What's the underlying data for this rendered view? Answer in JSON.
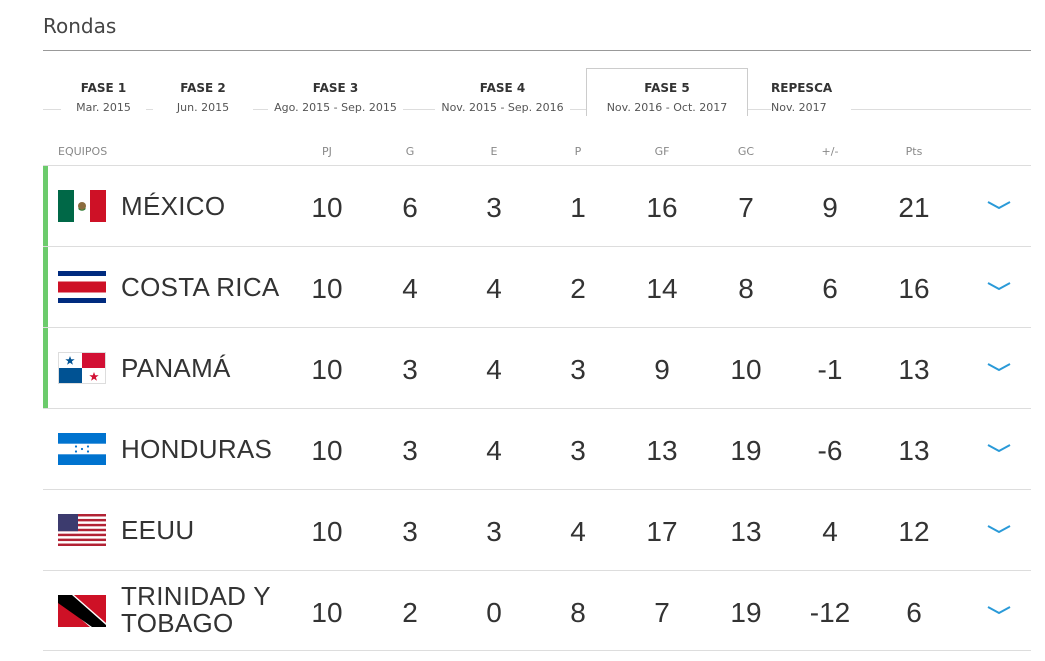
{
  "section": {
    "title": "Rondas"
  },
  "tabs": [
    {
      "name": "FASE 1",
      "date": "Mar. 2015"
    },
    {
      "name": "FASE 2",
      "date": "Jun. 2015"
    },
    {
      "name": "FASE 3",
      "date": "Ago. 2015 - Sep. 2015"
    },
    {
      "name": "FASE 4",
      "date": "Nov. 2015 - Sep. 2016"
    },
    {
      "name": "FASE 5",
      "date": "Nov. 2016 - Oct. 2017",
      "active": true
    },
    {
      "name": "REPESCA",
      "date": "Nov. 2017"
    }
  ],
  "table": {
    "headers": {
      "team": "EQUIPOS",
      "pj": "PJ",
      "g": "G",
      "e": "E",
      "p": "P",
      "gf": "GF",
      "gc": "GC",
      "diff": "+/-",
      "pts": "Pts"
    },
    "rows": [
      {
        "team": "MÉXICO",
        "flag": "mexico-flag",
        "qualified": true,
        "pj": "10",
        "g": "6",
        "e": "3",
        "p": "1",
        "gf": "16",
        "gc": "7",
        "diff": "9",
        "pts": "21"
      },
      {
        "team": "COSTA RICA",
        "flag": "costa-rica-flag",
        "qualified": true,
        "pj": "10",
        "g": "4",
        "e": "4",
        "p": "2",
        "gf": "14",
        "gc": "8",
        "diff": "6",
        "pts": "16"
      },
      {
        "team": "PANAMÁ",
        "flag": "panama-flag",
        "qualified": true,
        "pj": "10",
        "g": "3",
        "e": "4",
        "p": "3",
        "gf": "9",
        "gc": "10",
        "diff": "-1",
        "pts": "13"
      },
      {
        "team": "HONDURAS",
        "flag": "honduras-flag",
        "qualified": false,
        "pj": "10",
        "g": "3",
        "e": "4",
        "p": "3",
        "gf": "13",
        "gc": "19",
        "diff": "-6",
        "pts": "13"
      },
      {
        "team": "EEUU",
        "flag": "usa-flag",
        "qualified": false,
        "pj": "10",
        "g": "3",
        "e": "3",
        "p": "4",
        "gf": "17",
        "gc": "13",
        "diff": "4",
        "pts": "12"
      },
      {
        "team_line1": "TRINIDAD Y",
        "team_line2": "TOBAGO",
        "flag": "trinidad-tobago-flag",
        "qualified": false,
        "pj": "10",
        "g": "2",
        "e": "0",
        "p": "8",
        "gf": "7",
        "gc": "19",
        "diff": "-12",
        "pts": "6"
      }
    ]
  },
  "colors": {
    "qualified_bar": "#6ccb6c",
    "chevron": "#2a9ad8",
    "divider": "#dddddd"
  },
  "icons": {
    "expand": "chevron-down-icon"
  }
}
